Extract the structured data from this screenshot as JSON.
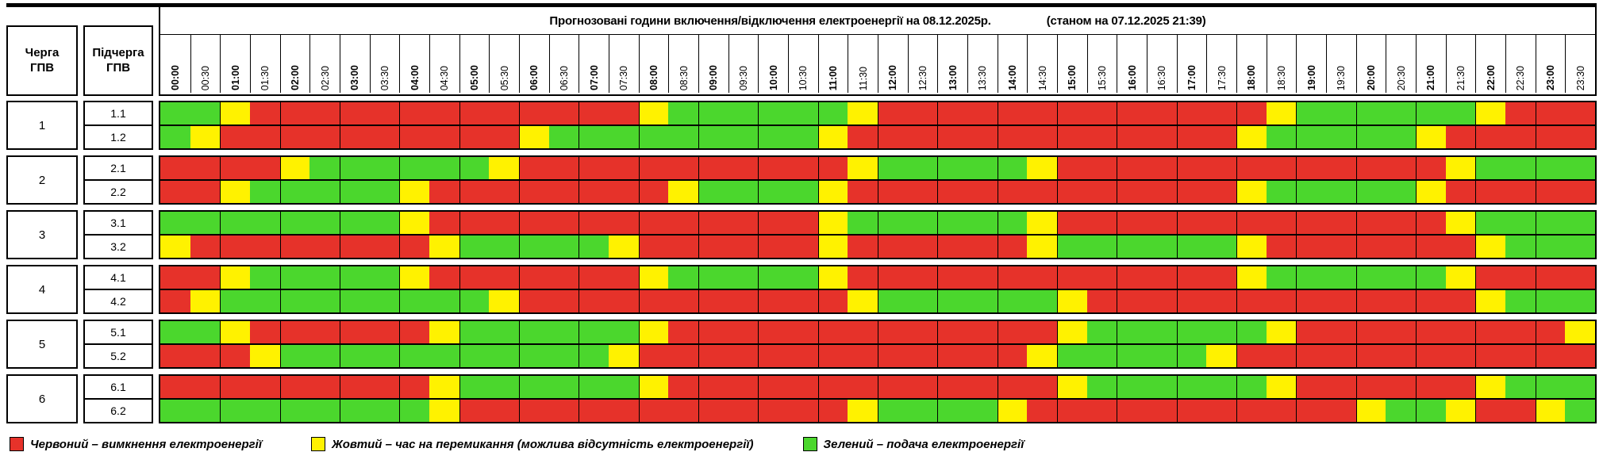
{
  "header": {
    "title": "Прогнозовані години включення/відключення електроенергії на 08.12.2025р.",
    "as_of": "(станом на 07.12.2025 21:39)",
    "queue_col": "Черга ГПВ",
    "subqueue_col": "Підчерга ГПВ",
    "times": [
      "00:00",
      "00:30",
      "01:00",
      "01:30",
      "02:00",
      "02:30",
      "03:00",
      "03:30",
      "04:00",
      "04:30",
      "05:00",
      "05:30",
      "06:00",
      "06:30",
      "07:00",
      "07:30",
      "08:00",
      "08:30",
      "09:00",
      "09:30",
      "10:00",
      "10:30",
      "11:00",
      "11:30",
      "12:00",
      "12:30",
      "13:00",
      "13:30",
      "14:00",
      "14:30",
      "15:00",
      "15:30",
      "16:00",
      "16:30",
      "17:00",
      "17:30",
      "18:00",
      "18:30",
      "19:00",
      "19:30",
      "20:00",
      "20:30",
      "21:00",
      "21:30",
      "22:00",
      "22:30",
      "23:00",
      "23:30"
    ]
  },
  "colors": {
    "R": "#E6322A",
    "Y": "#FFF200",
    "G": "#4BD72D"
  },
  "legend": [
    {
      "key": "R",
      "label": "Червоний – вимкнення електроенергії"
    },
    {
      "key": "Y",
      "label": "Жовтий – час на перемикання (можлива відсутність електроенергії)"
    },
    {
      "key": "G",
      "label": "Зелений – подача електроенергії"
    }
  ],
  "groups": [
    {
      "queue": "1",
      "rows": [
        {
          "label": "1.1",
          "slots": "GGYRRRRRRRRRRRRRYGGGGGGYRRRRRRRRRRRRRYGGGGGGYRRR"
        },
        {
          "label": "1.2",
          "slots": "GYRRRRRRRRRRYGGGGGGGGGYRRRRRRRRRRRRRYGGGGGYRRRRR"
        }
      ]
    },
    {
      "queue": "2",
      "rows": [
        {
          "label": "2.1",
          "slots": "RRRRYGGGGGGYRRRRRRRRRRRYGGGGGYRRRRRRRRRRRRRYGGGG"
        },
        {
          "label": "2.2",
          "slots": "RRYGGGGGYRRRRRRRRYGGGGYRRRRRRRRRRRRRYGGGGGYRRRRR"
        }
      ]
    },
    {
      "queue": "3",
      "rows": [
        {
          "label": "3.1",
          "slots": "GGGGGGGGYRRRRRRRRRRRRRYGGGGGGYRRRRRRRRRRRRRYGGGG"
        },
        {
          "label": "3.2",
          "slots": "YRRRRRRRRYGGGGGYRRRRRRYRRRRRRYGGGGGGYRRRRRRRYGGG"
        }
      ]
    },
    {
      "queue": "4",
      "rows": [
        {
          "label": "4.1",
          "slots": "RRYGGGGGYRRRRRRRYGGGGGYRRRRRRRRRRRRRYGGGGGGYRRRR"
        },
        {
          "label": "4.2",
          "slots": "RYGGGGGGGGGYRRRRRRRRRRRYGGGGGGYRRRRRRRRRRRRRYGGG"
        }
      ]
    },
    {
      "queue": "5",
      "rows": [
        {
          "label": "5.1",
          "slots": "GGYRRRRRRYGGGGGGYRRRRRRRRRRRRRYGGGGGGYRRRRRRRRRY"
        },
        {
          "label": "5.2",
          "slots": "RRRYGGGGGGGGGGGYRRRRRRRRRRRRRYGGGGGYRRRRRRRRRRRR"
        }
      ]
    },
    {
      "queue": "6",
      "rows": [
        {
          "label": "6.1",
          "slots": "RRRRRRRRRYGGGGGGYRRRRRRRRRRRRRYGGGGGGYRRRRRRYGGG"
        },
        {
          "label": "6.2",
          "slots": "GGGGGGGGGYRRRRRRRRRRRRRYGGGGYRRRRRRRRRRRYGGYRRYG"
        }
      ]
    }
  ]
}
